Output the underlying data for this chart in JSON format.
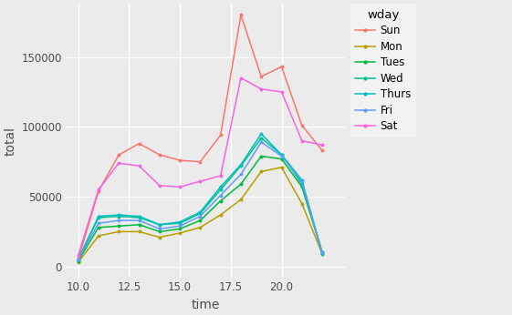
{
  "title": "",
  "xlabel": "time",
  "ylabel": "total",
  "legend_title": "wday",
  "bg_color": "#EBEBEB",
  "fig_color": "#EBEBEB",
  "grid_color": "#FFFFFF",
  "xlim": [
    9.4,
    23.1
  ],
  "ylim": [
    -8000,
    188000
  ],
  "xticks": [
    10.0,
    12.5,
    15.0,
    17.5,
    20.0
  ],
  "yticks": [
    0,
    50000,
    100000,
    150000
  ],
  "ytick_labels": [
    "0",
    "50000",
    "100000",
    "150000"
  ],
  "series": {
    "Sun": {
      "color": "#F8766D",
      "x": [
        10,
        11,
        12,
        13,
        14,
        15,
        16,
        17,
        18,
        19,
        20,
        21,
        22
      ],
      "y": [
        5000,
        54000,
        80000,
        88000,
        80000,
        76000,
        75000,
        94000,
        180000,
        136000,
        143000,
        101000,
        83000
      ]
    },
    "Mon": {
      "color": "#B79F00",
      "x": [
        10,
        11,
        12,
        13,
        14,
        15,
        16,
        17,
        18,
        19,
        20,
        21,
        22
      ],
      "y": [
        3000,
        22000,
        25000,
        25000,
        21000,
        24000,
        28000,
        37000,
        48000,
        68000,
        71000,
        45000,
        9000
      ]
    },
    "Tues": {
      "color": "#00BA38",
      "x": [
        10,
        11,
        12,
        13,
        14,
        15,
        16,
        17,
        18,
        19,
        20,
        21,
        22
      ],
      "y": [
        4000,
        28000,
        29000,
        30000,
        25000,
        27000,
        33000,
        47000,
        59000,
        79000,
        77000,
        57000,
        10000
      ]
    },
    "Wed": {
      "color": "#00C08B",
      "x": [
        10,
        11,
        12,
        13,
        14,
        15,
        16,
        17,
        18,
        19,
        20,
        21,
        22
      ],
      "y": [
        5000,
        35000,
        36000,
        35000,
        30000,
        31000,
        38000,
        55000,
        72000,
        92000,
        80000,
        59000,
        10000
      ]
    },
    "Thurs": {
      "color": "#00BFC4",
      "x": [
        10,
        11,
        12,
        13,
        14,
        15,
        16,
        17,
        18,
        19,
        20,
        21,
        22
      ],
      "y": [
        5000,
        36000,
        37000,
        36000,
        30000,
        32000,
        39000,
        57000,
        73000,
        95000,
        80000,
        62000,
        9000
      ]
    },
    "Fri": {
      "color": "#619CFF",
      "x": [
        10,
        11,
        12,
        13,
        14,
        15,
        16,
        17,
        18,
        19,
        20,
        21,
        22
      ],
      "y": [
        5000,
        31000,
        33000,
        33000,
        27000,
        29000,
        36000,
        51000,
        66000,
        89000,
        79000,
        61000,
        10000
      ]
    },
    "Sat": {
      "color": "#F564E3",
      "x": [
        10,
        11,
        12,
        13,
        14,
        15,
        16,
        17,
        18,
        19,
        20,
        21,
        22
      ],
      "y": [
        8000,
        55000,
        74000,
        72000,
        58000,
        57000,
        61000,
        65000,
        135000,
        127000,
        125000,
        90000,
        87000
      ]
    }
  },
  "legend_order": [
    "Sun",
    "Mon",
    "Tues",
    "Wed",
    "Thurs",
    "Fri",
    "Sat"
  ]
}
